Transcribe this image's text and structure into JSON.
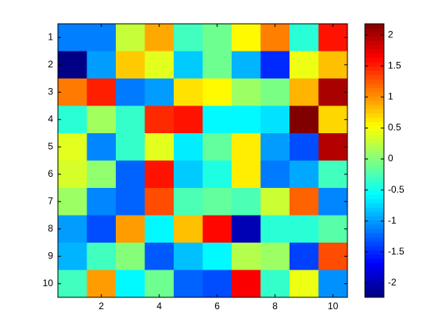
{
  "chart_data": {
    "type": "heatmap",
    "colormap": "jet",
    "x": [
      1,
      2,
      3,
      4,
      5,
      6,
      7,
      8,
      9,
      10
    ],
    "y": [
      1,
      2,
      3,
      4,
      5,
      6,
      7,
      8,
      9,
      10
    ],
    "values": [
      [
        -1.13,
        -1.13,
        0.28,
        0.9,
        -0.3,
        -0.1,
        0.55,
        1.08,
        -0.4,
        1.55
      ],
      [
        -2.2,
        -1.0,
        0.75,
        0.4,
        -0.8,
        -0.1,
        -0.9,
        -1.5,
        0.45,
        0.8
      ],
      [
        1.1,
        1.5,
        -1.15,
        -1.0,
        0.65,
        0.55,
        0.1,
        -0.05,
        0.85,
        2.0
      ],
      [
        -0.4,
        0.12,
        -0.35,
        1.45,
        1.55,
        -0.6,
        -0.6,
        -0.7,
        2.18,
        0.7
      ],
      [
        0.4,
        -1.1,
        -0.35,
        0.4,
        -0.65,
        -0.15,
        0.6,
        -1.0,
        -1.35,
        1.95
      ],
      [
        0.35,
        0.05,
        -1.25,
        1.55,
        -0.8,
        -0.45,
        0.6,
        -1.15,
        -0.95,
        -0.3
      ],
      [
        0.1,
        -1.1,
        -1.25,
        1.3,
        -0.25,
        -0.15,
        -0.25,
        0.3,
        1.2,
        -1.1
      ],
      [
        -1.0,
        -1.35,
        0.95,
        -0.6,
        0.8,
        1.6,
        -2.0,
        -0.4,
        -0.4,
        -0.2
      ],
      [
        -0.9,
        -0.3,
        0.0,
        -1.3,
        -0.85,
        -0.6,
        0.2,
        0.1,
        -1.4,
        1.3
      ],
      [
        -0.3,
        0.95,
        -0.6,
        -0.1,
        -1.25,
        -1.35,
        1.65,
        -0.35,
        0.45,
        -1.05
      ]
    ],
    "xlim": [
      0.5,
      10.5
    ],
    "xticks": [
      2,
      4,
      6,
      8,
      10
    ],
    "ylim": [
      0.5,
      10.5
    ],
    "yticks": [
      1,
      2,
      3,
      4,
      5,
      6,
      7,
      8,
      9,
      10
    ],
    "clim": [
      -2.23,
      2.18
    ],
    "cticks": [
      -2,
      -1.5,
      -1,
      -0.5,
      0,
      0.5,
      1,
      1.5,
      2
    ]
  }
}
